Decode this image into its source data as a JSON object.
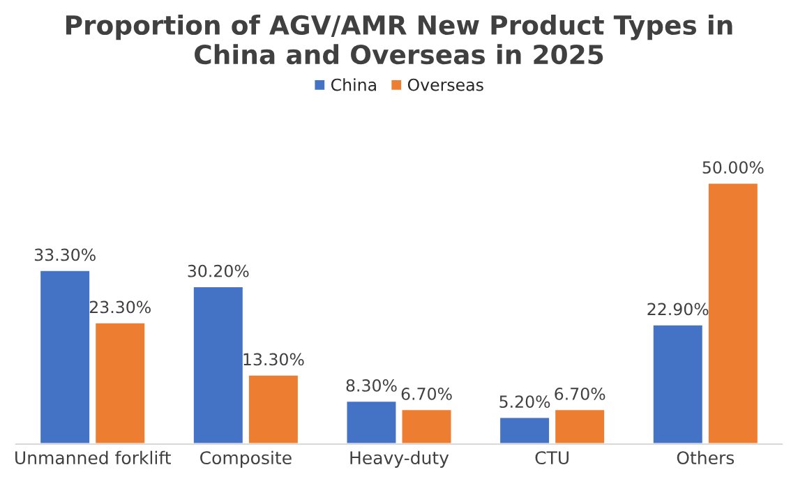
{
  "chart_data": {
    "type": "bar",
    "title": "Proportion of AGV/AMR New Product Types in\nChina and Overseas in 2025",
    "categories": [
      "Unmanned forklift",
      "Composite",
      "Heavy-duty",
      "CTU",
      "Others"
    ],
    "series": [
      {
        "name": "China",
        "color": "#4472c4",
        "values": [
          33.3,
          30.2,
          8.3,
          5.2,
          22.9
        ],
        "value_labels": [
          "33.30%",
          "30.20%",
          "8.30%",
          "5.20%",
          "22.90%"
        ]
      },
      {
        "name": "Overseas",
        "color": "#ed7d31",
        "values": [
          23.3,
          13.3,
          6.7,
          6.7,
          50.0
        ],
        "value_labels": [
          "23.30%",
          "13.30%",
          "6.70%",
          "6.70%",
          "50.00%"
        ]
      }
    ],
    "legend": "top",
    "grid": false
  }
}
